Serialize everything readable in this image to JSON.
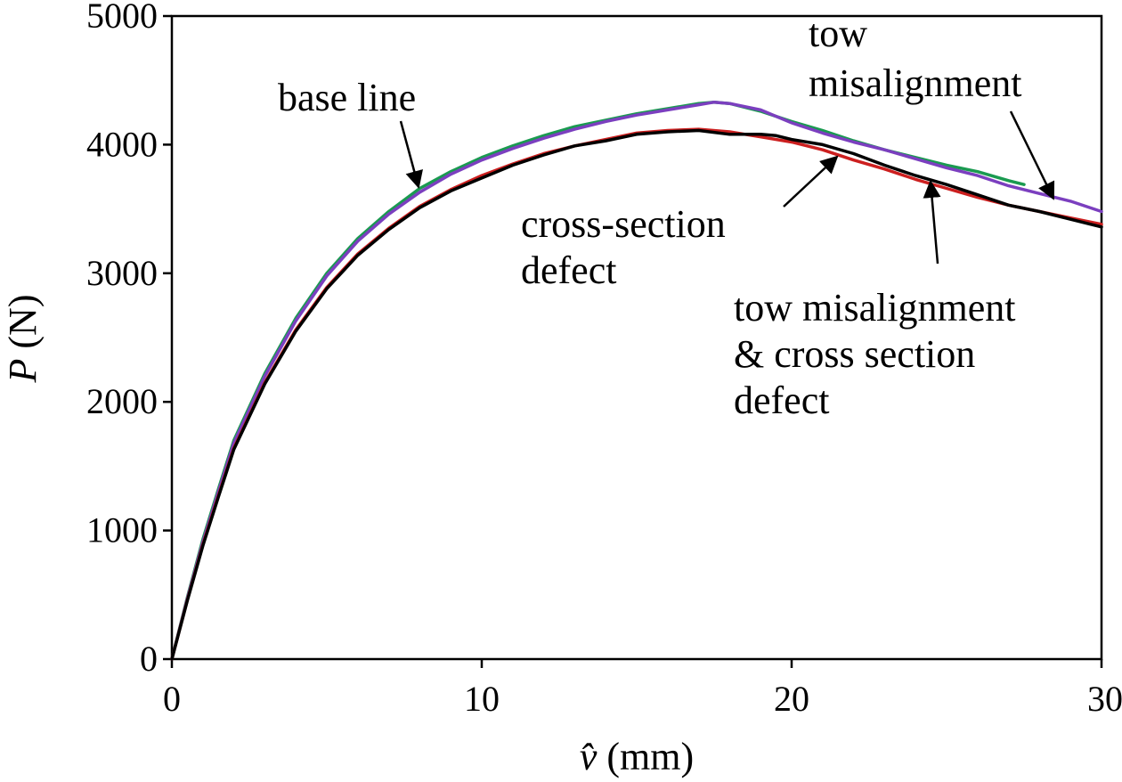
{
  "chart_data": {
    "type": "line",
    "xlabel": "v̂ (mm)",
    "ylabel": "P (N)",
    "xlim": [
      0,
      30
    ],
    "ylim": [
      0,
      5000
    ],
    "x_ticks": [
      "0",
      "10",
      "20",
      "30"
    ],
    "y_ticks": [
      "0",
      "1000",
      "2000",
      "3000",
      "4000",
      "5000"
    ],
    "grid": false,
    "legend": "none",
    "series": [
      {
        "name": "base line",
        "color": "#1a9a50",
        "x": [
          0,
          0.5,
          1,
          1.5,
          2,
          3,
          4,
          5,
          6,
          7,
          8,
          9,
          10,
          11,
          12,
          13,
          14,
          15,
          16,
          17,
          17.5,
          18,
          19,
          20,
          21,
          22,
          23,
          24,
          25,
          26,
          27,
          27.5
        ],
        "y": [
          0,
          480,
          930,
          1320,
          1700,
          2220,
          2650,
          3000,
          3270,
          3480,
          3660,
          3790,
          3900,
          3990,
          4070,
          4140,
          4190,
          4240,
          4280,
          4320,
          4330,
          4320,
          4260,
          4180,
          4110,
          4030,
          3960,
          3900,
          3840,
          3790,
          3720,
          3690
        ]
      },
      {
        "name": "tow misalignment",
        "color": "#7b3fbf",
        "x": [
          0,
          0.5,
          1,
          1.5,
          2,
          3,
          4,
          5,
          6,
          7,
          8,
          9,
          10,
          11,
          12,
          13,
          14,
          15,
          16,
          17,
          17.5,
          18,
          19,
          20,
          21,
          22,
          23,
          24,
          25,
          26,
          27,
          28,
          29,
          30
        ],
        "y": [
          0,
          470,
          910,
          1300,
          1680,
          2200,
          2630,
          2980,
          3250,
          3460,
          3630,
          3770,
          3880,
          3970,
          4050,
          4120,
          4180,
          4230,
          4270,
          4310,
          4330,
          4320,
          4270,
          4170,
          4090,
          4020,
          3960,
          3890,
          3820,
          3760,
          3680,
          3620,
          3560,
          3480
        ]
      },
      {
        "name": "cross-section defect",
        "color": "#cc1f1f",
        "x": [
          0,
          0.5,
          1,
          1.5,
          2,
          3,
          4,
          5,
          6,
          7,
          8,
          9,
          10,
          11,
          12,
          13,
          14,
          15,
          16,
          17,
          18,
          19,
          20,
          21,
          22,
          23,
          24,
          25,
          26,
          27,
          28,
          29,
          30
        ],
        "y": [
          0,
          460,
          890,
          1270,
          1640,
          2150,
          2560,
          2890,
          3150,
          3350,
          3520,
          3650,
          3760,
          3850,
          3930,
          3990,
          4040,
          4090,
          4110,
          4120,
          4100,
          4060,
          4020,
          3960,
          3880,
          3810,
          3730,
          3660,
          3590,
          3530,
          3480,
          3430,
          3380
        ]
      },
      {
        "name": "tow misalignment & cross section defect",
        "color": "#000000",
        "x": [
          0,
          0.5,
          1,
          1.5,
          2,
          3,
          4,
          5,
          6,
          7,
          8,
          9,
          10,
          11,
          12,
          13,
          14,
          15,
          16,
          17,
          18,
          19,
          19.5,
          20,
          21,
          22,
          23,
          24,
          25,
          26,
          27,
          28,
          29,
          30
        ],
        "y": [
          0,
          455,
          880,
          1260,
          1630,
          2140,
          2550,
          2880,
          3140,
          3340,
          3510,
          3640,
          3740,
          3840,
          3920,
          3990,
          4030,
          4080,
          4100,
          4110,
          4080,
          4080,
          4070,
          4040,
          4000,
          3930,
          3840,
          3760,
          3690,
          3610,
          3530,
          3480,
          3420,
          3360
        ]
      }
    ],
    "annotations": [
      {
        "lines": [
          "base line"
        ]
      },
      {
        "lines": [
          "tow",
          "misalignment"
        ]
      },
      {
        "lines": [
          "cross-section",
          "defect"
        ]
      },
      {
        "lines": [
          "tow misalignment",
          "& cross section",
          "defect"
        ]
      }
    ]
  }
}
